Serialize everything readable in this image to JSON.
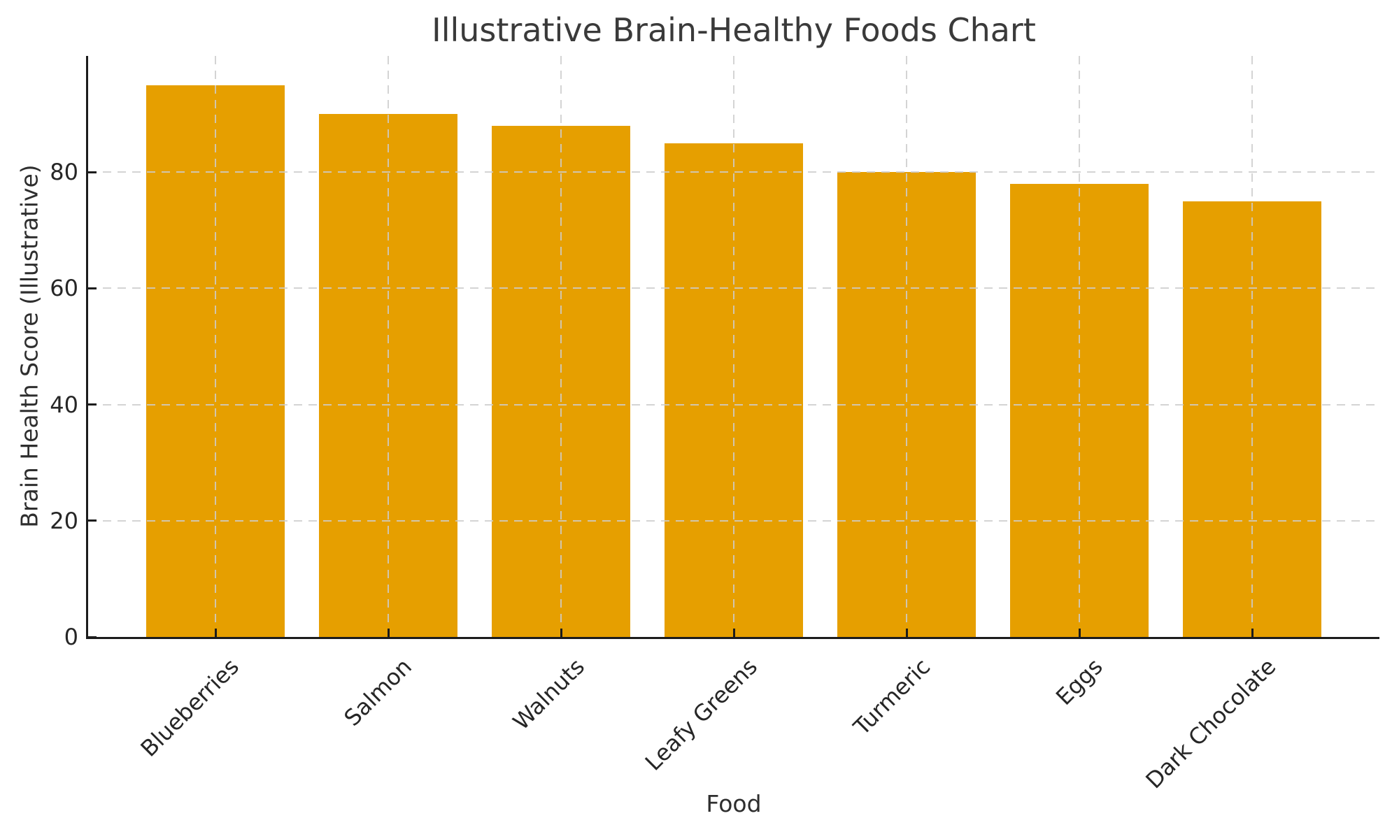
{
  "chart_data": {
    "type": "bar",
    "title": "Illustrative Brain-Healthy Foods Chart",
    "xlabel": "Food",
    "ylabel": "Brain Health Score (Illustrative)",
    "categories": [
      "Blueberries",
      "Salmon",
      "Walnuts",
      "Leafy Greens",
      "Turmeric",
      "Eggs",
      "Dark Chocolate"
    ],
    "values": [
      95,
      90,
      88,
      85,
      80,
      78,
      75
    ],
    "yticks": [
      0,
      20,
      40,
      60,
      80
    ],
    "ylim": [
      0,
      100
    ],
    "bar_color": "#E69F00",
    "grid_color": "#cdcdcd",
    "grid_style": "dashed, both axes, drawn over bars",
    "axis_color": "#1c1c1c",
    "text_color": "#2e2e2e",
    "background_color": "#ffffff",
    "legend": "none"
  }
}
